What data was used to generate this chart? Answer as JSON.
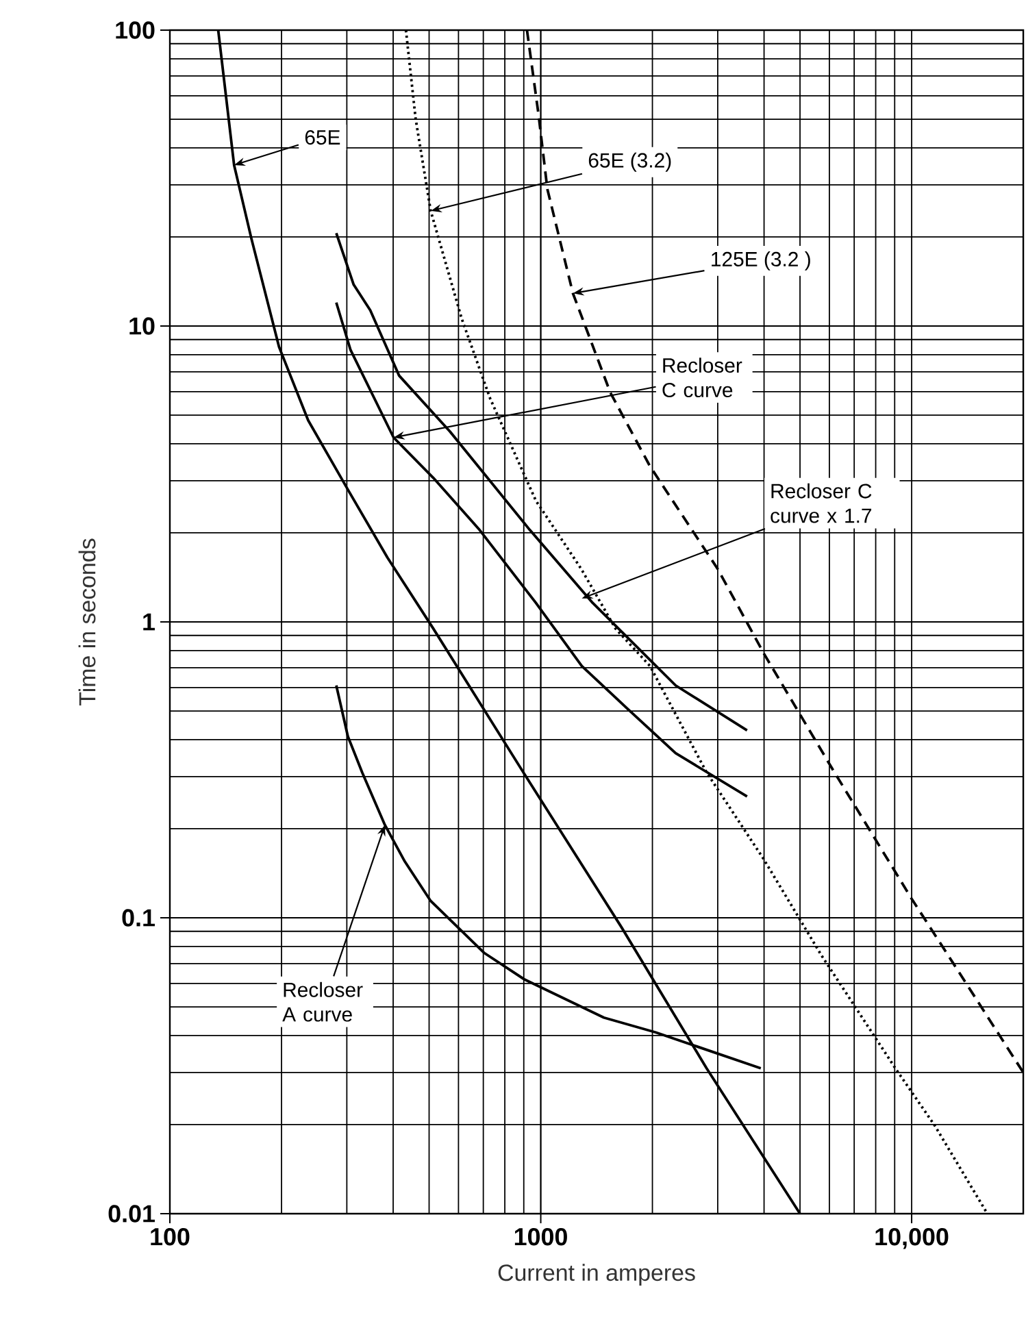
{
  "chart_data": {
    "type": "line",
    "xlabel": "Current in amperes",
    "ylabel": "Time in seconds",
    "log": "xy",
    "grid": true,
    "marker": "none",
    "xlim": [
      100,
      20000
    ],
    "ylim": [
      0.01,
      100
    ],
    "xticks": [
      100,
      1000,
      {
        "value": 10000,
        "label": "10,000"
      }
    ],
    "yticks": [
      0.01,
      0.1,
      1,
      10,
      100
    ],
    "series": [
      {
        "color": "#000000",
        "line_style": "solid",
        "x": [
          135,
          149,
          166,
          197,
          236,
          302,
          386,
          513,
          902,
          1650,
          2800,
          5000
        ],
        "values": [
          100,
          35,
          19.7,
          8.5,
          4.8,
          2.8,
          1.65,
          0.95,
          0.307,
          0.093,
          0.031,
          0.01
        ]
      },
      {
        "color": "#000000",
        "line_style": "dotted",
        "x": [
          433,
          460,
          505,
          612,
          730,
          970,
          1286,
          1590,
          1970,
          2800,
          3990,
          5700,
          9040,
          11560,
          16000
        ],
        "values": [
          100,
          50,
          24.5,
          10.6,
          5.7,
          2.57,
          1.51,
          0.95,
          0.71,
          0.31,
          0.158,
          0.075,
          0.031,
          0.0198,
          0.01
        ]
      },
      {
        "color": "#000000",
        "line_style": "dashed",
        "x": [
          918,
          986,
          1042,
          1221,
          1540,
          1970,
          3000,
          4000,
          6100,
          10000,
          13800,
          20000
        ],
        "values": [
          100,
          52,
          29,
          12.9,
          5.96,
          3.36,
          1.51,
          0.78,
          0.32,
          0.116,
          0.062,
          0.03
        ]
      },
      {
        "color": "#000000",
        "line_style": "solid",
        "x": [
          281,
          307,
          401,
          513,
          681,
          970,
          1290,
          1710,
          2310,
          3600
        ],
        "values": [
          12,
          8.3,
          4.2,
          3.07,
          2.06,
          1.16,
          0.71,
          0.51,
          0.36,
          0.257
        ]
      },
      {
        "color": "#000000",
        "line_style": "solid",
        "x": [
          281,
          313,
          347,
          415,
          569,
          933,
          1380,
          2310,
          3600
        ],
        "values": [
          20.6,
          13.8,
          11.3,
          6.8,
          4.4,
          2.05,
          1.16,
          0.61,
          0.43
        ]
      },
      {
        "color": "#000000",
        "line_style": "solid",
        "x": [
          281,
          302,
          330,
          380,
          430,
          505,
          705,
          902,
          1480,
          2040,
          3920
        ],
        "values": [
          0.61,
          0.41,
          0.31,
          0.206,
          0.155,
          0.114,
          0.076,
          0.062,
          0.046,
          0.041,
          0.031
        ]
      }
    ],
    "annotations": [
      {
        "text": "65E",
        "x": 149,
        "y": 35
      },
      {
        "text": "65E (3.2)",
        "x": 505,
        "y": 24.5
      },
      {
        "text": "125E (3.2 )",
        "x": 1221,
        "y": 12.9
      },
      {
        "text": "Recloser C curve",
        "x": 401,
        "y": 4.2
      },
      {
        "text": "Recloser C curve x 1.7",
        "x": 1290,
        "y": 1.2
      },
      {
        "text": "Recloser A curve",
        "x": 380,
        "y": 0.206
      }
    ]
  }
}
